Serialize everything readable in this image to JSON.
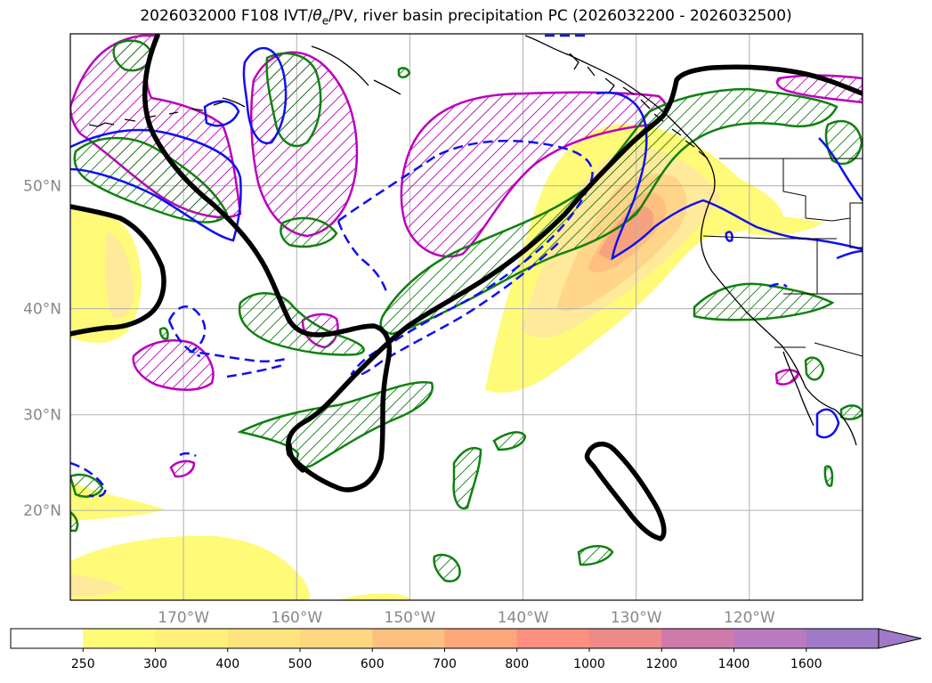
{
  "title": "2026032000 F108 IVT/θe/PV, river basin precipitation PC (2026032200 - 2026032500)",
  "title_parts": {
    "before": "2026032000 F108 IVT/",
    "theta": "θ",
    "sub": "e",
    "after": "/PV, river basin precipitation PC (2026032200 - 2026032500)"
  },
  "map": {
    "lon_range": [
      -180,
      -110
    ],
    "lat_range": [
      10,
      60
    ],
    "lat_labels": [
      {
        "lat": 50,
        "text": "50°N"
      },
      {
        "lat": 40,
        "text": "40°N"
      },
      {
        "lat": 30,
        "text": "30°N"
      },
      {
        "lat": 20,
        "text": "20°N"
      }
    ],
    "lon_labels": [
      {
        "lon": -170,
        "text": "170°W"
      },
      {
        "lon": -160,
        "text": "160°W"
      },
      {
        "lon": -150,
        "text": "150°W"
      },
      {
        "lon": -140,
        "text": "140°W"
      },
      {
        "lon": -130,
        "text": "130°W"
      },
      {
        "lon": -120,
        "text": "120°W"
      }
    ],
    "colors": {
      "ivt": "#fff87a",
      "theta_e": "#000000",
      "pv_positive": "#1010ee",
      "pv_green": "#108010",
      "pv_magenta": "#bb00bb",
      "grid": "#b0b0b0",
      "coast": "#000000"
    }
  },
  "colorbar": {
    "levels": [
      "250",
      "300",
      "400",
      "500",
      "600",
      "700",
      "800",
      "1000",
      "1200",
      "1400",
      "1600"
    ],
    "colors": [
      "#ffffff",
      "#fffa78",
      "#fff07a",
      "#ffe47e",
      "#ffd780",
      "#ffbf7e",
      "#ffa67a",
      "#ff8f7e",
      "#ee8a8a",
      "#d07aaa",
      "#bb7ac0",
      "#a07ac8"
    ],
    "extend": "max"
  }
}
